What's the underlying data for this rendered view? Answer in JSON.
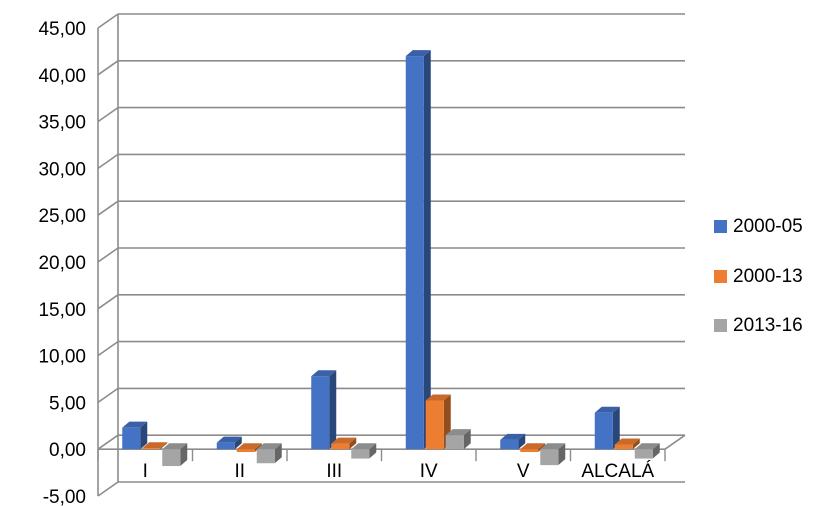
{
  "chart_data": {
    "type": "bar",
    "categories": [
      "I",
      "II",
      "III",
      "IV",
      "V",
      "ALCALÁ"
    ],
    "series": [
      {
        "name": "2000-05",
        "values": [
          2.3,
          0.7,
          7.8,
          42.0,
          1.0,
          3.9
        ]
      },
      {
        "name": "2000-13",
        "values": [
          0.1,
          -0.3,
          0.6,
          5.2,
          -0.3,
          0.5
        ]
      },
      {
        "name": "2013-16",
        "values": [
          -1.8,
          -1.5,
          -1.0,
          1.5,
          -1.7,
          -1.0
        ]
      }
    ],
    "y_ticks": [
      "-5,00",
      "0,00",
      "5,00",
      "10,00",
      "15,00",
      "20,00",
      "25,00",
      "30,00",
      "35,00",
      "40,00",
      "45,00"
    ],
    "ylim": [
      -5,
      45
    ],
    "grid": true,
    "legend_position": "right",
    "colors": {
      "2000-05": "#4472C4",
      "2000-13": "#ED7D31",
      "2013-16": "#A5A5A5"
    },
    "style": "3d-clustered-column"
  }
}
